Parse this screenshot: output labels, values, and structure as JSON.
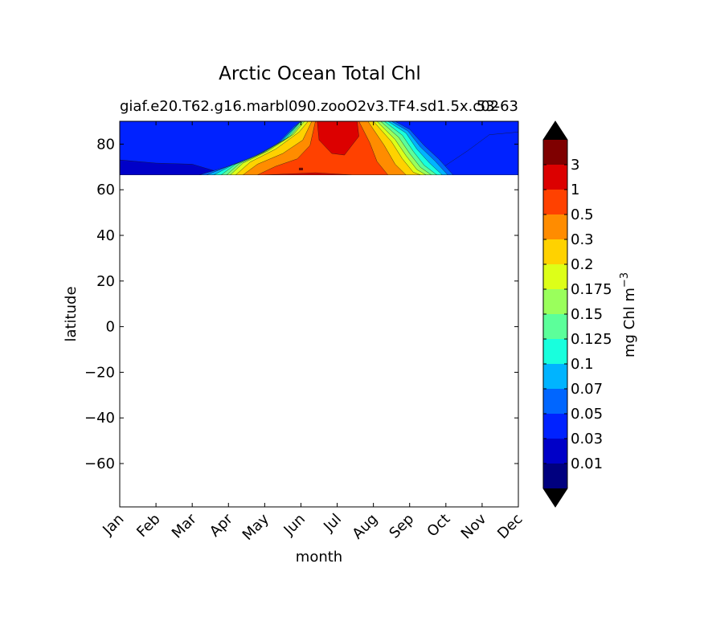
{
  "chart_data": {
    "type": "heatmap",
    "title": "Arctic Ocean Total Chl",
    "subtitle_left": "giaf.e20.T62.g16.marbl090.zooO2v3.TF4.sd1.5x.c02",
    "subtitle_right": "53-63",
    "xlabel": "month",
    "ylabel": "latitude",
    "xticks": [
      "Jan",
      "Feb",
      "Mar",
      "Apr",
      "May",
      "Jun",
      "Jul",
      "Aug",
      "Sep",
      "Oct",
      "Nov",
      "Dec"
    ],
    "yticks": [
      80,
      60,
      40,
      20,
      0,
      -20,
      -40,
      -60
    ],
    "ytick_labels": [
      "80",
      "60",
      "40",
      "20",
      "0",
      "−20",
      "−40",
      "−60"
    ],
    "xlim": [
      1,
      12
    ],
    "ylim": [
      -79,
      90
    ],
    "data_lat_range": [
      66.5,
      90
    ],
    "colorbar": {
      "label": "mg Chl m",
      "label_sup": "−3",
      "levels": [
        "0.01",
        "0.03",
        "0.05",
        "0.07",
        "0.1",
        "0.125",
        "0.15",
        "0.175",
        "0.2",
        "0.3",
        "0.5",
        "1",
        "3"
      ],
      "colors": [
        "#00007f",
        "#0000c8",
        "#0022ff",
        "#0066ff",
        "#00b4ff",
        "#18ffdd",
        "#5cff9a",
        "#9aff5c",
        "#ddff18",
        "#ffd200",
        "#ff8c00",
        "#ff4100",
        "#dc0000",
        "#7f0000"
      ],
      "extend": "both"
    },
    "grid": false,
    "legend": "none"
  }
}
